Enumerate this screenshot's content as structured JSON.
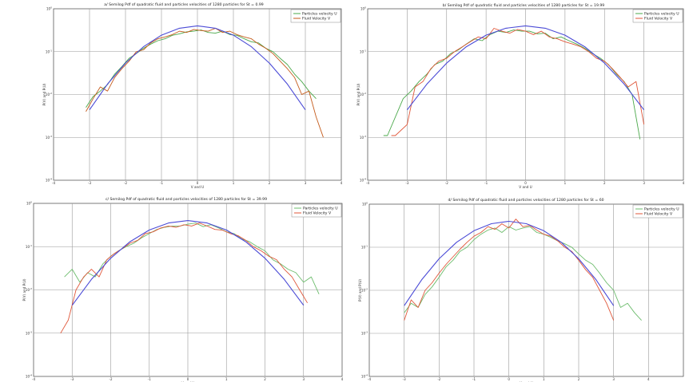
{
  "chart_data": [
    {
      "type": "line",
      "title": "a/ Semilog Pdf of quadratic fluid and particles velocities of 1280 particles for St = 0.99",
      "xlabel": "V and U",
      "ylabel": "P(V) and P(U)",
      "xlim": [
        -4,
        4
      ],
      "ylim": [
        0.0001,
        1
      ],
      "yscale": "log",
      "grid": true,
      "legend_position": "top-right",
      "legend": [
        "Particles velocity U",
        "Fluid Velocity V"
      ],
      "x_ticks": [
        "-4",
        "-3",
        "-2",
        "-1",
        "0",
        "1",
        "2",
        "3",
        "4"
      ],
      "y_ticks": [
        "10^0",
        "10^-1",
        "10^-2",
        "10^-3",
        "10^-4"
      ],
      "series": [
        {
          "name": "Particles velocity U",
          "color": "#4aa84a",
          "x": [
            -3.1,
            -2.9,
            -2.7,
            -2.5,
            -2.3,
            -2.1,
            -1.9,
            -1.7,
            -1.5,
            -1.3,
            -1.1,
            -0.9,
            -0.7,
            -0.5,
            -0.3,
            -0.1,
            0.1,
            0.3,
            0.5,
            0.7,
            0.9,
            1.1,
            1.3,
            1.5,
            1.7,
            1.9,
            2.1,
            2.3,
            2.5,
            2.7,
            2.9,
            3.1,
            3.3
          ],
          "y": [
            0.005,
            0.009,
            0.012,
            0.017,
            0.03,
            0.045,
            0.07,
            0.09,
            0.12,
            0.15,
            0.18,
            0.2,
            0.24,
            0.26,
            0.29,
            0.3,
            0.32,
            0.28,
            0.27,
            0.3,
            0.25,
            0.24,
            0.2,
            0.17,
            0.16,
            0.12,
            0.1,
            0.07,
            0.05,
            0.03,
            0.02,
            0.012,
            0.008
          ]
        },
        {
          "name": "Fluid Velocity V",
          "color": "#c45a1a",
          "x": [
            -3.1,
            -2.9,
            -2.7,
            -2.5,
            -2.3,
            -2.1,
            -1.9,
            -1.7,
            -1.5,
            -1.3,
            -1.1,
            -0.9,
            -0.7,
            -0.5,
            -0.3,
            -0.1,
            0.1,
            0.3,
            0.5,
            0.7,
            0.9,
            1.1,
            1.3,
            1.5,
            1.7,
            1.9,
            2.1,
            2.3,
            2.5,
            2.7,
            2.9,
            3.1,
            3.3,
            3.5
          ],
          "y": [
            0.004,
            0.008,
            0.015,
            0.012,
            0.025,
            0.04,
            0.06,
            0.1,
            0.11,
            0.16,
            0.2,
            0.22,
            0.25,
            0.3,
            0.28,
            0.33,
            0.31,
            0.3,
            0.35,
            0.28,
            0.3,
            0.25,
            0.22,
            0.2,
            0.15,
            0.12,
            0.09,
            0.06,
            0.04,
            0.025,
            0.01,
            0.012,
            0.003,
            0.001
          ]
        },
        {
          "name": "",
          "color": "#4b4bd6",
          "x": [
            -3,
            -2.5,
            -2,
            -1.5,
            -1,
            -0.5,
            0,
            0.5,
            1,
            1.5,
            2,
            2.5,
            3
          ],
          "y": [
            0.0044,
            0.0175,
            0.054,
            0.13,
            0.242,
            0.352,
            0.399,
            0.352,
            0.242,
            0.13,
            0.054,
            0.0175,
            0.0044
          ]
        }
      ]
    },
    {
      "type": "line",
      "title": "b/ Semilog Pdf of quadratic fluid and particles velocities of 1280 particles for St = 19.99",
      "xlabel": "V and U",
      "ylabel": "P(V) and P(U)",
      "xlim": [
        -4,
        4
      ],
      "ylim": [
        0.0001,
        1
      ],
      "yscale": "log",
      "grid": true,
      "legend_position": "top-right",
      "legend": [
        "Particles velocity U",
        "Fluid Velocity V"
      ],
      "x_ticks": [
        "-4",
        "-3",
        "-2",
        "-1",
        "0",
        "1",
        "2",
        "3",
        "4"
      ],
      "y_ticks": [
        "10^0",
        "10^-1",
        "10^-2",
        "10^-3",
        "10^-4"
      ],
      "series": [
        {
          "name": "Particles velocity U",
          "color": "#4aa84a",
          "x": [
            -3.6,
            -3.5,
            -3.1,
            -2.9,
            -2.7,
            -2.5,
            -2.3,
            -2.1,
            -1.9,
            -1.7,
            -1.5,
            -1.3,
            -1.1,
            -0.9,
            -0.7,
            -0.5,
            -0.3,
            -0.1,
            0.1,
            0.3,
            0.5,
            0.7,
            0.9,
            1.1,
            1.3,
            1.5,
            1.7,
            1.9,
            2.1,
            2.3,
            2.5,
            2.7,
            2.9
          ],
          "y": [
            0.0011,
            0.0011,
            0.008,
            0.012,
            0.02,
            0.03,
            0.05,
            0.06,
            0.09,
            0.11,
            0.15,
            0.2,
            0.18,
            0.25,
            0.3,
            0.28,
            0.32,
            0.3,
            0.3,
            0.26,
            0.27,
            0.2,
            0.22,
            0.18,
            0.15,
            0.12,
            0.09,
            0.07,
            0.05,
            0.03,
            0.02,
            0.01,
            0.0009
          ]
        },
        {
          "name": "Fluid Velocity V",
          "color": "#e0573a",
          "x": [
            -3.4,
            -3.3,
            -3.0,
            -2.8,
            -2.6,
            -2.4,
            -2.2,
            -2.0,
            -1.8,
            -1.6,
            -1.4,
            -1.2,
            -1.0,
            -0.8,
            -0.6,
            -0.4,
            -0.2,
            0.0,
            0.2,
            0.4,
            0.6,
            0.8,
            1.0,
            1.2,
            1.4,
            1.6,
            1.8,
            2.0,
            2.2,
            2.4,
            2.6,
            2.8,
            3.0
          ],
          "y": [
            0.0011,
            0.0011,
            0.002,
            0.015,
            0.02,
            0.04,
            0.06,
            0.07,
            0.1,
            0.13,
            0.17,
            0.22,
            0.2,
            0.35,
            0.3,
            0.27,
            0.33,
            0.3,
            0.25,
            0.3,
            0.22,
            0.2,
            0.17,
            0.15,
            0.13,
            0.1,
            0.07,
            0.06,
            0.04,
            0.025,
            0.015,
            0.02,
            0.002
          ]
        },
        {
          "name": "",
          "color": "#4b4bd6",
          "x": [
            -3,
            -2.5,
            -2,
            -1.5,
            -1,
            -0.5,
            0,
            0.5,
            1,
            1.5,
            2,
            2.5,
            3
          ],
          "y": [
            0.0044,
            0.0175,
            0.054,
            0.13,
            0.242,
            0.352,
            0.399,
            0.352,
            0.242,
            0.13,
            0.054,
            0.0175,
            0.0044
          ]
        }
      ]
    },
    {
      "type": "line",
      "title": "c/ Semilog Pdf of quadratic fluid and particles velocities of 1280 particles for St = 39.99",
      "xlabel": "V and U",
      "ylabel": "P(V) and P(U)",
      "xlim": [
        -4,
        4
      ],
      "ylim": [
        0.0001,
        1
      ],
      "yscale": "log",
      "grid": true,
      "legend_position": "top-right",
      "legend": [
        "Particles velocity U",
        "Fluid Velocity V"
      ],
      "x_ticks": [
        "-4",
        "-3",
        "-2",
        "-1",
        "0",
        "1",
        "2",
        "3",
        "4"
      ],
      "y_ticks": [
        "10^0",
        "10^-1",
        "10^-2",
        "10^-3",
        "10^-4"
      ],
      "series": [
        {
          "name": "Particles velocity U",
          "color": "#6cbc6c",
          "x": [
            -3.2,
            -3.0,
            -2.8,
            -2.6,
            -2.4,
            -2.2,
            -2.0,
            -1.8,
            -1.6,
            -1.4,
            -1.2,
            -1.0,
            -0.8,
            -0.6,
            -0.4,
            -0.2,
            0.0,
            0.2,
            0.4,
            0.6,
            0.8,
            1.0,
            1.2,
            1.4,
            1.6,
            1.8,
            2.0,
            2.2,
            2.4,
            2.6,
            2.8,
            3.0,
            3.2,
            3.4
          ],
          "y": [
            0.02,
            0.03,
            0.015,
            0.025,
            0.02,
            0.04,
            0.06,
            0.08,
            0.1,
            0.12,
            0.16,
            0.2,
            0.25,
            0.28,
            0.3,
            0.3,
            0.33,
            0.35,
            0.29,
            0.32,
            0.27,
            0.22,
            0.2,
            0.15,
            0.13,
            0.1,
            0.08,
            0.05,
            0.04,
            0.03,
            0.025,
            0.015,
            0.02,
            0.008
          ]
        },
        {
          "name": "Fluid Velocity V",
          "color": "#e0573a",
          "x": [
            -3.3,
            -3.1,
            -2.9,
            -2.7,
            -2.5,
            -2.3,
            -2.1,
            -1.9,
            -1.7,
            -1.5,
            -1.3,
            -1.1,
            -0.9,
            -0.7,
            -0.5,
            -0.3,
            -0.1,
            0.1,
            0.3,
            0.5,
            0.7,
            0.9,
            1.1,
            1.3,
            1.5,
            1.7,
            1.9,
            2.1,
            2.3,
            2.5,
            2.7,
            2.9,
            3.1
          ],
          "y": [
            0.001,
            0.002,
            0.01,
            0.02,
            0.03,
            0.02,
            0.05,
            0.07,
            0.09,
            0.12,
            0.14,
            0.2,
            0.22,
            0.27,
            0.3,
            0.28,
            0.32,
            0.3,
            0.35,
            0.3,
            0.25,
            0.24,
            0.2,
            0.18,
            0.14,
            0.1,
            0.08,
            0.06,
            0.05,
            0.03,
            0.02,
            0.01,
            0.005
          ]
        },
        {
          "name": "",
          "color": "#4b4bd6",
          "x": [
            -3,
            -2.5,
            -2,
            -1.5,
            -1,
            -0.5,
            0,
            0.5,
            1,
            1.5,
            2,
            2.5,
            3
          ],
          "y": [
            0.0044,
            0.0175,
            0.054,
            0.13,
            0.242,
            0.352,
            0.399,
            0.352,
            0.242,
            0.13,
            0.054,
            0.0175,
            0.0044
          ]
        }
      ]
    },
    {
      "type": "line",
      "title": "d/ Semilog Pdf of quadratic fluid and particles velocities of 1280 particles for St = 60",
      "xlabel": "V and U",
      "ylabel": "P(V) and P(U)",
      "xlim": [
        -4,
        5
      ],
      "ylim": [
        0.0001,
        1
      ],
      "yscale": "log",
      "grid": true,
      "legend_position": "top-right",
      "legend": [
        "Particles velocity U",
        "Fluid Velocity V"
      ],
      "x_ticks": [
        "-4",
        "-3",
        "-2",
        "-1",
        "0",
        "1",
        "2",
        "3",
        "4"
      ],
      "y_ticks": [
        "10^0",
        "10^-1",
        "10^-2",
        "10^-3",
        "10^-4"
      ],
      "series": [
        {
          "name": "Particles velocity U",
          "color": "#6cbc6c",
          "x": [
            -3.0,
            -2.8,
            -2.6,
            -2.4,
            -2.2,
            -2.0,
            -1.8,
            -1.6,
            -1.4,
            -1.2,
            -1.0,
            -0.8,
            -0.6,
            -0.4,
            -0.2,
            0.0,
            0.2,
            0.4,
            0.6,
            0.8,
            1.0,
            1.2,
            1.4,
            1.6,
            1.8,
            2.0,
            2.2,
            2.4,
            2.6,
            2.8,
            3.0,
            3.2,
            3.4,
            3.6,
            3.8
          ],
          "y": [
            0.003,
            0.005,
            0.004,
            0.008,
            0.012,
            0.02,
            0.035,
            0.05,
            0.08,
            0.1,
            0.15,
            0.2,
            0.25,
            0.28,
            0.22,
            0.3,
            0.25,
            0.28,
            0.3,
            0.22,
            0.2,
            0.17,
            0.14,
            0.12,
            0.1,
            0.07,
            0.05,
            0.04,
            0.025,
            0.015,
            0.01,
            0.004,
            0.005,
            0.003,
            0.002
          ]
        },
        {
          "name": "Fluid Velocity V",
          "color": "#e0573a",
          "x": [
            -3.0,
            -2.8,
            -2.6,
            -2.4,
            -2.2,
            -2.0,
            -1.8,
            -1.6,
            -1.4,
            -1.2,
            -1.0,
            -0.8,
            -0.6,
            -0.4,
            -0.2,
            0.0,
            0.2,
            0.4,
            0.6,
            0.8,
            1.0,
            1.2,
            1.4,
            1.6,
            1.8,
            2.0,
            2.2,
            2.4,
            2.6,
            2.8,
            3.0
          ],
          "y": [
            0.002,
            0.006,
            0.004,
            0.01,
            0.015,
            0.025,
            0.04,
            0.06,
            0.09,
            0.13,
            0.18,
            0.22,
            0.3,
            0.26,
            0.35,
            0.28,
            0.45,
            0.3,
            0.32,
            0.25,
            0.2,
            0.18,
            0.14,
            0.1,
            0.08,
            0.05,
            0.03,
            0.02,
            0.01,
            0.005,
            0.002
          ]
        },
        {
          "name": "",
          "color": "#4b4bd6",
          "x": [
            -3,
            -2.5,
            -2,
            -1.5,
            -1,
            -0.5,
            0,
            0.5,
            1,
            1.5,
            2,
            2.5,
            3
          ],
          "y": [
            0.0044,
            0.0175,
            0.054,
            0.13,
            0.242,
            0.352,
            0.399,
            0.352,
            0.242,
            0.13,
            0.054,
            0.0175,
            0.0044
          ]
        }
      ]
    }
  ]
}
